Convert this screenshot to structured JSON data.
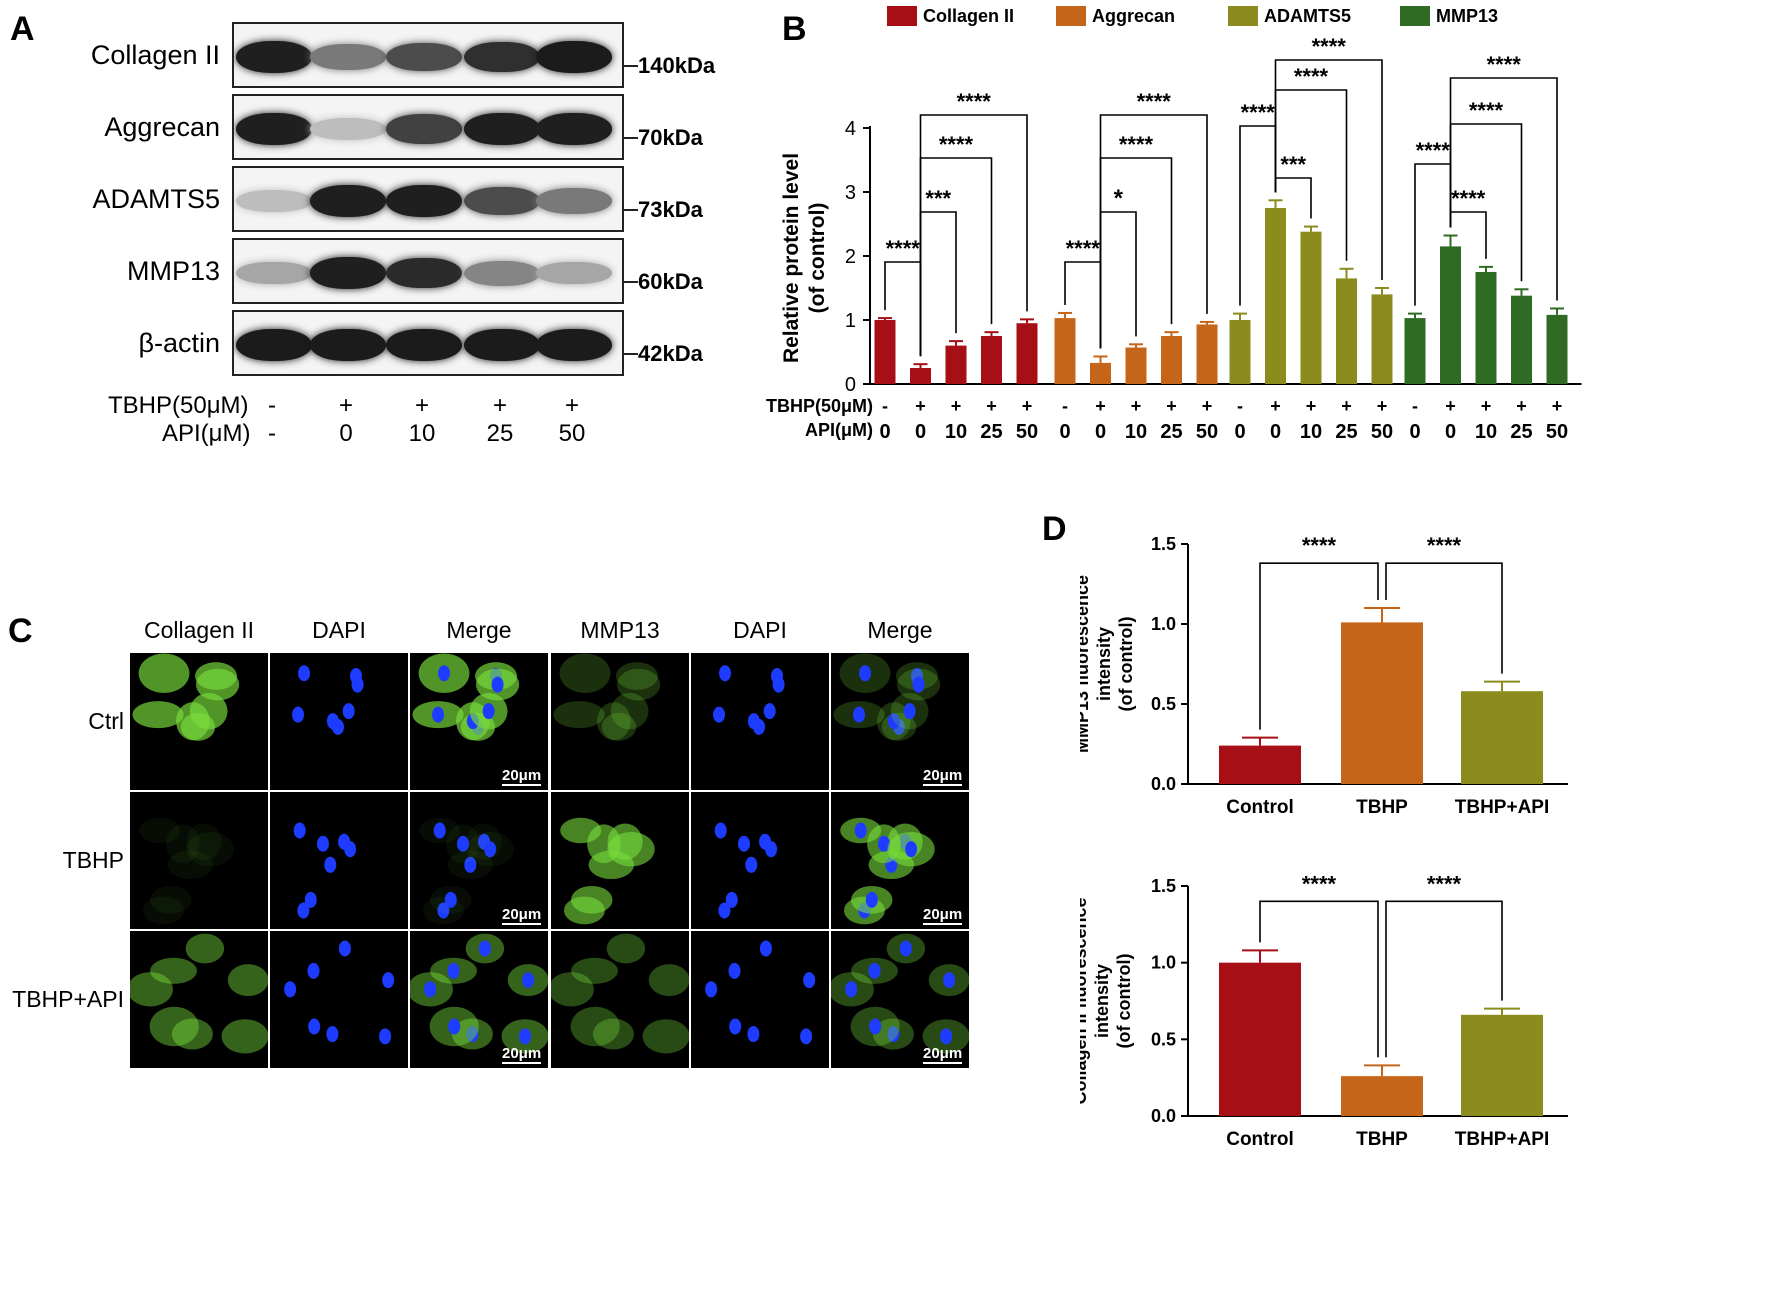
{
  "panels": {
    "a": "A",
    "b": "B",
    "c": "C",
    "d": "D"
  },
  "blot": {
    "rows": [
      {
        "label": "Collagen II",
        "kda": "140kDa",
        "intensity": [
          0.95,
          0.55,
          0.75,
          0.88,
          0.97
        ]
      },
      {
        "label": "Aggrecan",
        "kda": "70kDa",
        "intensity": [
          0.95,
          0.25,
          0.8,
          0.95,
          0.95
        ]
      },
      {
        "label": "ADAMTS5",
        "kda": "73kDa",
        "intensity": [
          0.25,
          0.95,
          0.95,
          0.75,
          0.55
        ]
      },
      {
        "label": "MMP13",
        "kda": "60kDa",
        "intensity": [
          0.35,
          0.95,
          0.9,
          0.5,
          0.35
        ]
      },
      {
        "label": "β-actin",
        "kda": "42kDa",
        "intensity": [
          0.97,
          0.97,
          0.97,
          0.97,
          0.97
        ]
      }
    ],
    "tbhp_label": "TBHP(50μM)",
    "api_label": "API(μM)",
    "tbhp": [
      "-",
      "+",
      "+",
      "+",
      "+"
    ],
    "api": [
      "-",
      "0",
      "10",
      "25",
      "50"
    ]
  },
  "micro": {
    "columns": [
      "Collagen II",
      "DAPI",
      "Merge",
      "MMP13",
      "DAPI",
      "Merge"
    ],
    "rows": [
      "Ctrl",
      "TBHP",
      "TBHP+API"
    ],
    "scale_bar": "20μm",
    "collagen_level": [
      0.9,
      0.08,
      0.6
    ],
    "mmp13_level": [
      0.3,
      0.8,
      0.45
    ]
  },
  "chart_data": [
    {
      "type": "bar",
      "ylabel": "Relative protein level\n(of control)",
      "ylim": [
        0,
        4
      ],
      "yticks": [
        "0",
        "1",
        "2",
        "3",
        "4"
      ],
      "tbhp_label": "TBHP(50μM)",
      "api_label": "API(μM)",
      "tbhp": [
        "-",
        "+",
        "+",
        "+",
        "+"
      ],
      "api": [
        "0",
        "0",
        "10",
        "25",
        "50"
      ],
      "series": [
        {
          "name": "Collagen II",
          "color": "#a50f15",
          "values": [
            1.0,
            0.25,
            0.6,
            0.75,
            0.95
          ],
          "errors": [
            0.03,
            0.06,
            0.07,
            0.06,
            0.06
          ],
          "sig": [
            {
              "from": 0,
              "to": 1,
              "label": "****"
            },
            {
              "from": 1,
              "to": 2,
              "label": "***"
            },
            {
              "from": 1,
              "to": 3,
              "label": "****"
            },
            {
              "from": 1,
              "to": 4,
              "label": "****"
            }
          ]
        },
        {
          "name": "Aggrecan",
          "color": "#c5651a",
          "values": [
            1.03,
            0.33,
            0.57,
            0.75,
            0.93
          ],
          "errors": [
            0.08,
            0.1,
            0.05,
            0.06,
            0.04
          ],
          "sig": [
            {
              "from": 0,
              "to": 1,
              "label": "****"
            },
            {
              "from": 1,
              "to": 2,
              "label": "*"
            },
            {
              "from": 1,
              "to": 3,
              "label": "****"
            },
            {
              "from": 1,
              "to": 4,
              "label": "****"
            }
          ]
        },
        {
          "name": "ADAMTS5",
          "color": "#8c8b1d",
          "values": [
            1.0,
            2.75,
            2.38,
            1.65,
            1.4
          ],
          "errors": [
            0.1,
            0.12,
            0.08,
            0.15,
            0.1
          ],
          "sig": [
            {
              "from": 0,
              "to": 1,
              "label": "****"
            },
            {
              "from": 1,
              "to": 2,
              "label": "***"
            },
            {
              "from": 1,
              "to": 3,
              "label": "****"
            },
            {
              "from": 1,
              "to": 4,
              "label": "****"
            }
          ]
        },
        {
          "name": "MMP13",
          "color": "#2f6b22",
          "values": [
            1.03,
            2.15,
            1.75,
            1.38,
            1.08
          ],
          "errors": [
            0.07,
            0.17,
            0.08,
            0.1,
            0.1
          ],
          "sig": [
            {
              "from": 0,
              "to": 1,
              "label": "****"
            },
            {
              "from": 1,
              "to": 2,
              "label": "****"
            },
            {
              "from": 1,
              "to": 3,
              "label": "****"
            },
            {
              "from": 1,
              "to": 4,
              "label": "****"
            }
          ]
        }
      ]
    },
    {
      "type": "bar",
      "ylabel": "MMP13 fluorescence\nintensity\n(of control)",
      "ylim": [
        0,
        1.5
      ],
      "yticks": [
        "0.0",
        "0.5",
        "1.0",
        "1.5"
      ],
      "categories": [
        "Control",
        "TBHP",
        "TBHP+API"
      ],
      "colors": [
        "#a50f15",
        "#c5651a",
        "#8c8b1d"
      ],
      "values": [
        0.24,
        1.01,
        0.58
      ],
      "errors": [
        0.05,
        0.09,
        0.06
      ],
      "sig": [
        {
          "from": 0,
          "to": 1,
          "label": "****"
        },
        {
          "from": 1,
          "to": 2,
          "label": "****"
        }
      ]
    },
    {
      "type": "bar",
      "ylabel": "Collagen II fluorescence\nintensity\n(of control)",
      "ylim": [
        0,
        1.5
      ],
      "yticks": [
        "0.0",
        "0.5",
        "1.0",
        "1.5"
      ],
      "categories": [
        "Control",
        "TBHP",
        "TBHP+API"
      ],
      "colors": [
        "#a50f15",
        "#c5651a",
        "#8c8b1d"
      ],
      "values": [
        1.0,
        0.26,
        0.66
      ],
      "errors": [
        0.08,
        0.07,
        0.04
      ],
      "sig": [
        {
          "from": 0,
          "to": 1,
          "label": "****"
        },
        {
          "from": 1,
          "to": 2,
          "label": "****"
        }
      ]
    }
  ]
}
